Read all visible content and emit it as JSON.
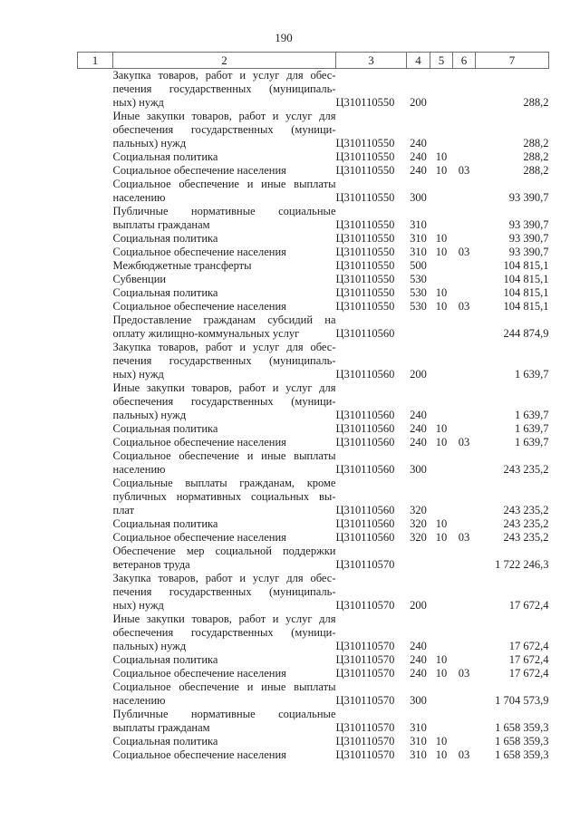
{
  "page": {
    "number": "190"
  },
  "table": {
    "header": [
      "1",
      "2",
      "3",
      "4",
      "5",
      "6",
      "7"
    ],
    "rows": [
      {
        "name_lines": [
          "Закупка товаров, работ и услуг для обес-",
          "печения  государственных  (муниципаль-",
          "ных) нужд"
        ],
        "code": "Ц310110550",
        "expense_type": "200",
        "section": "",
        "subsection": "",
        "amount": "288,2"
      },
      {
        "name_lines": [
          "Иные закупки товаров, работ и услуг для",
          "обеспечения  государственных  (муници-",
          "пальных) нужд"
        ],
        "code": "Ц310110550",
        "expense_type": "240",
        "section": "",
        "subsection": "",
        "amount": "288,2"
      },
      {
        "name_lines": [
          "Социальная политика"
        ],
        "code": "Ц310110550",
        "expense_type": "240",
        "section": "10",
        "subsection": "",
        "amount": "288,2"
      },
      {
        "name_lines": [
          "Социальное обеспечение населения"
        ],
        "code": "Ц310110550",
        "expense_type": "240",
        "section": "10",
        "subsection": "03",
        "amount": "288,2"
      },
      {
        "name_lines": [
          "Социальное обеспечение и иные выплаты",
          "населению"
        ],
        "code": "Ц310110550",
        "expense_type": "300",
        "section": "",
        "subsection": "",
        "amount": "93 390,7"
      },
      {
        "name_lines": [
          "Публичные   нормативные   социальные",
          "выплаты гражданам"
        ],
        "code": "Ц310110550",
        "expense_type": "310",
        "section": "",
        "subsection": "",
        "amount": "93 390,7"
      },
      {
        "name_lines": [
          "Социальная политика"
        ],
        "code": "Ц310110550",
        "expense_type": "310",
        "section": "10",
        "subsection": "",
        "amount": "93 390,7"
      },
      {
        "name_lines": [
          "Социальное обеспечение населения"
        ],
        "code": "Ц310110550",
        "expense_type": "310",
        "section": "10",
        "subsection": "03",
        "amount": "93 390,7"
      },
      {
        "name_lines": [
          "Межбюджетные трансферты"
        ],
        "code": "Ц310110550",
        "expense_type": "500",
        "section": "",
        "subsection": "",
        "amount": "104 815,1"
      },
      {
        "name_lines": [
          "Субвенции"
        ],
        "code": "Ц310110550",
        "expense_type": "530",
        "section": "",
        "subsection": "",
        "amount": "104 815,1"
      },
      {
        "name_lines": [
          "Социальная политика"
        ],
        "code": "Ц310110550",
        "expense_type": "530",
        "section": "10",
        "subsection": "",
        "amount": "104 815,1"
      },
      {
        "name_lines": [
          "Социальное обеспечение населения"
        ],
        "code": "Ц310110550",
        "expense_type": "530",
        "section": "10",
        "subsection": "03",
        "amount": "104 815,1"
      },
      {
        "name_lines": [
          "Предоставление  гражданам  субсидий  на",
          "оплату жилищно-коммунальных услуг"
        ],
        "code": "Ц310110560",
        "expense_type": "",
        "section": "",
        "subsection": "",
        "amount": "244 874,9"
      },
      {
        "name_lines": [
          "Закупка товаров, работ и услуг для обес-",
          "печения  государственных  (муниципаль-",
          "ных) нужд"
        ],
        "code": "Ц310110560",
        "expense_type": "200",
        "section": "",
        "subsection": "",
        "amount": "1 639,7"
      },
      {
        "name_lines": [
          "Иные закупки товаров, работ и услуг для",
          "обеспечения  государственных  (муници-",
          "пальных) нужд"
        ],
        "code": "Ц310110560",
        "expense_type": "240",
        "section": "",
        "subsection": "",
        "amount": "1 639,7"
      },
      {
        "name_lines": [
          "Социальная политика"
        ],
        "code": "Ц310110560",
        "expense_type": "240",
        "section": "10",
        "subsection": "",
        "amount": "1 639,7"
      },
      {
        "name_lines": [
          "Социальное обеспечение населения"
        ],
        "code": "Ц310110560",
        "expense_type": "240",
        "section": "10",
        "subsection": "03",
        "amount": "1 639,7"
      },
      {
        "name_lines": [
          "Социальное обеспечение и иные выплаты",
          "населению"
        ],
        "code": "Ц310110560",
        "expense_type": "300",
        "section": "",
        "subsection": "",
        "amount": "243 235,2"
      },
      {
        "name_lines": [
          "Социальные  выплаты  гражданам,  кроме",
          "публичных нормативных социальных вы-",
          "плат"
        ],
        "code": "Ц310110560",
        "expense_type": "320",
        "section": "",
        "subsection": "",
        "amount": "243 235,2"
      },
      {
        "name_lines": [
          "Социальная политика"
        ],
        "code": "Ц310110560",
        "expense_type": "320",
        "section": "10",
        "subsection": "",
        "amount": "243 235,2"
      },
      {
        "name_lines": [
          "Социальное обеспечение населения"
        ],
        "code": "Ц310110560",
        "expense_type": "320",
        "section": "10",
        "subsection": "03",
        "amount": "243 235,2"
      },
      {
        "name_lines": [
          "Обеспечение  мер  социальной  поддержки",
          "ветеранов труда"
        ],
        "code": "Ц310110570",
        "expense_type": "",
        "section": "",
        "subsection": "",
        "amount": "1 722 246,3"
      },
      {
        "name_lines": [
          "Закупка товаров, работ и услуг для обес-",
          "печения  государственных  (муниципаль-",
          "ных) нужд"
        ],
        "code": "Ц310110570",
        "expense_type": "200",
        "section": "",
        "subsection": "",
        "amount": "17 672,4"
      },
      {
        "name_lines": [
          "Иные закупки товаров, работ и услуг для",
          "обеспечения  государственных  (муници-",
          "пальных) нужд"
        ],
        "code": "Ц310110570",
        "expense_type": "240",
        "section": "",
        "subsection": "",
        "amount": "17 672,4"
      },
      {
        "name_lines": [
          "Социальная политика"
        ],
        "code": "Ц310110570",
        "expense_type": "240",
        "section": "10",
        "subsection": "",
        "amount": "17 672,4"
      },
      {
        "name_lines": [
          "Социальное обеспечение населения"
        ],
        "code": "Ц310110570",
        "expense_type": "240",
        "section": "10",
        "subsection": "03",
        "amount": "17 672,4"
      },
      {
        "name_lines": [
          "Социальное обеспечение и иные выплаты",
          "населению"
        ],
        "code": "Ц310110570",
        "expense_type": "300",
        "section": "",
        "subsection": "",
        "amount": "1 704 573,9"
      },
      {
        "name_lines": [
          "Публичные   нормативные   социальные",
          "выплаты гражданам"
        ],
        "code": "Ц310110570",
        "expense_type": "310",
        "section": "",
        "subsection": "",
        "amount": "1 658 359,3"
      },
      {
        "name_lines": [
          "Социальная политика"
        ],
        "code": "Ц310110570",
        "expense_type": "310",
        "section": "10",
        "subsection": "",
        "amount": "1 658 359,3"
      },
      {
        "name_lines": [
          "Социальное обеспечение населения"
        ],
        "code": "Ц310110570",
        "expense_type": "310",
        "section": "10",
        "subsection": "03",
        "amount": "1 658 359,3"
      }
    ]
  }
}
